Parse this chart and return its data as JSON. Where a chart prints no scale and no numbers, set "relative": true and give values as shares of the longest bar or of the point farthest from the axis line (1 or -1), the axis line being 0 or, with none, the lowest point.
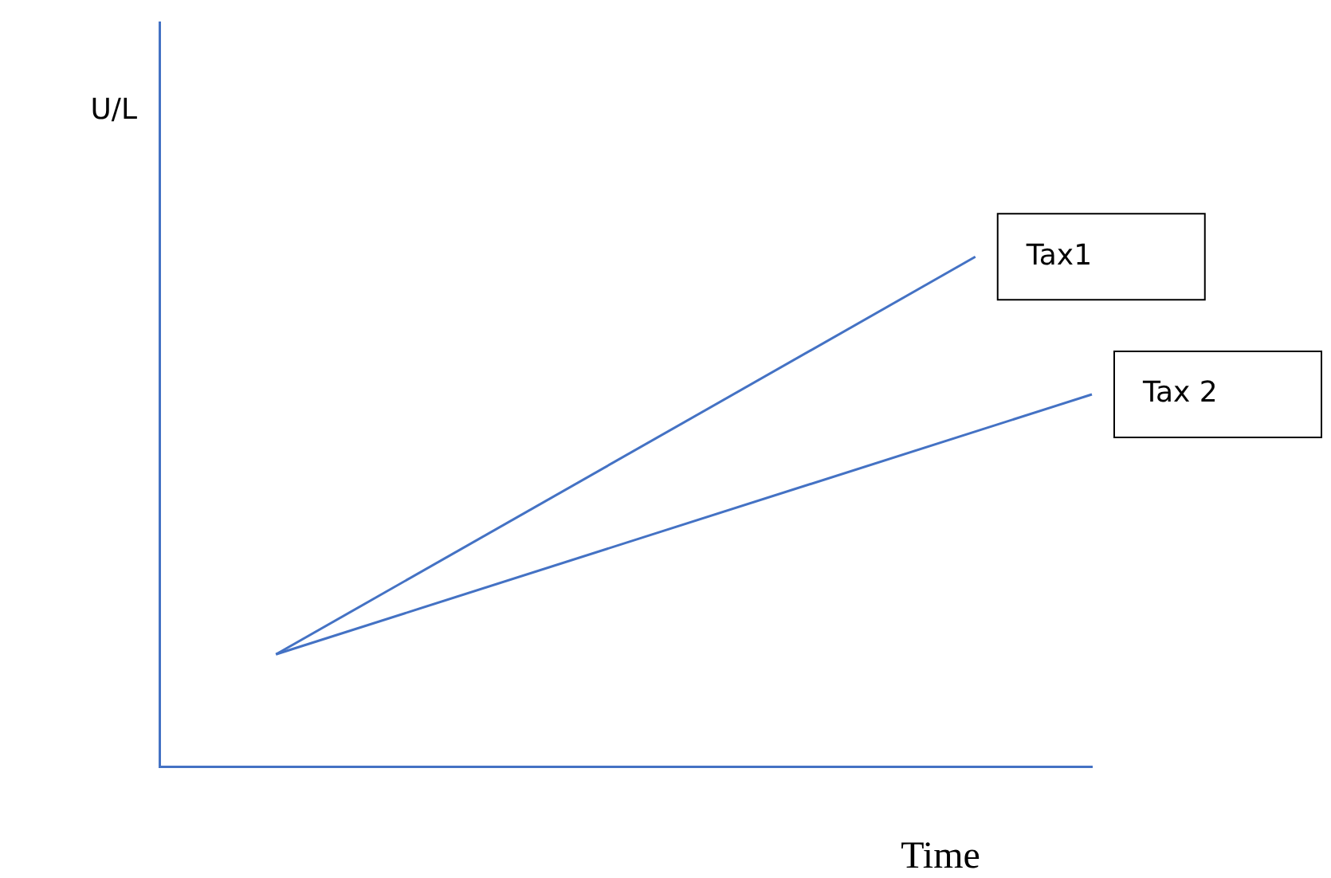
{
  "chart_data": {
    "type": "line",
    "relative": true,
    "xlabel": "Time",
    "ylabel": "U/L",
    "legend": false,
    "grid": false,
    "marker": "none",
    "line_style": "solid",
    "categories": [
      null,
      null,
      null,
      null,
      null,
      null,
      null,
      null,
      null
    ],
    "series": [
      {
        "name": "Tax1",
        "color": "#4472c4",
        "values": [
          null,
          0.22,
          null,
          null,
          null,
          null,
          null,
          1,
          null
        ]
      },
      {
        "name": "Tax 2",
        "color": "#4472c4",
        "values": [
          null,
          0.22,
          null,
          null,
          null,
          null,
          null,
          null,
          0.73
        ]
      }
    ]
  }
}
